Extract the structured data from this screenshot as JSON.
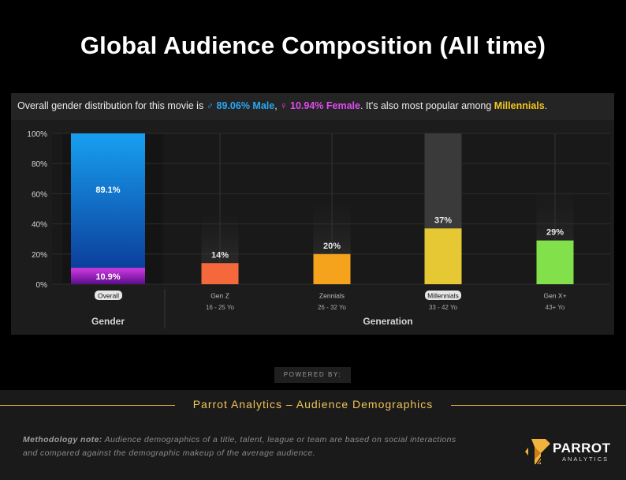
{
  "page": {
    "title": "Global Audience Composition (All time)"
  },
  "summary": {
    "prefix": "Overall gender distribution for this movie is ",
    "male_symbol": "♂",
    "male_text": " 89.06% Male",
    "sep": ", ",
    "female_symbol": "♀",
    "female_text": " 10.94% Female",
    "mid": ". It's also most popular among ",
    "generation": "Millennials",
    "suffix": "."
  },
  "chart_data": {
    "type": "bar",
    "ylim": [
      0,
      100
    ],
    "yticks": [
      "0%",
      "20%",
      "40%",
      "60%",
      "80%",
      "100%"
    ],
    "gender": {
      "group_label": "Gender",
      "category": "Overall",
      "male_value": 89.1,
      "female_value": 10.9,
      "male_label": "89.1%",
      "female_label": "10.9%"
    },
    "generation": {
      "group_label": "Generation",
      "bars": [
        {
          "name": "Gen Z",
          "age": "16 - 25 Yo",
          "value": 14,
          "label": "14%",
          "color": "#f4683c",
          "highlight": false
        },
        {
          "name": "Zennials",
          "age": "26 - 32 Yo",
          "value": 20,
          "label": "20%",
          "color": "#f5a31c",
          "highlight": false
        },
        {
          "name": "Millennials",
          "age": "33 - 42 Yo",
          "value": 37,
          "label": "37%",
          "color": "#e6c834",
          "highlight": true
        },
        {
          "name": "Gen X+",
          "age": "43+ Yo",
          "value": 29,
          "label": "29%",
          "color": "#82e04b",
          "highlight": false
        }
      ]
    },
    "colors": {
      "male": "#17a0f0",
      "male_dark": "#0c3f9c",
      "female": "#d33be6",
      "female_dark": "#5b0d8a"
    }
  },
  "powered": "POWERED BY:",
  "footer": {
    "title": "Parrot Analytics – Audience Demographics",
    "method_label": "Methodology note:",
    "method_text": " Audience demographics of a title, talent, league or team are based on social interactions and compared against the demographic makeup of the average audience."
  },
  "logo": {
    "word": "PARROT",
    "sub": "ANALYTICS"
  }
}
